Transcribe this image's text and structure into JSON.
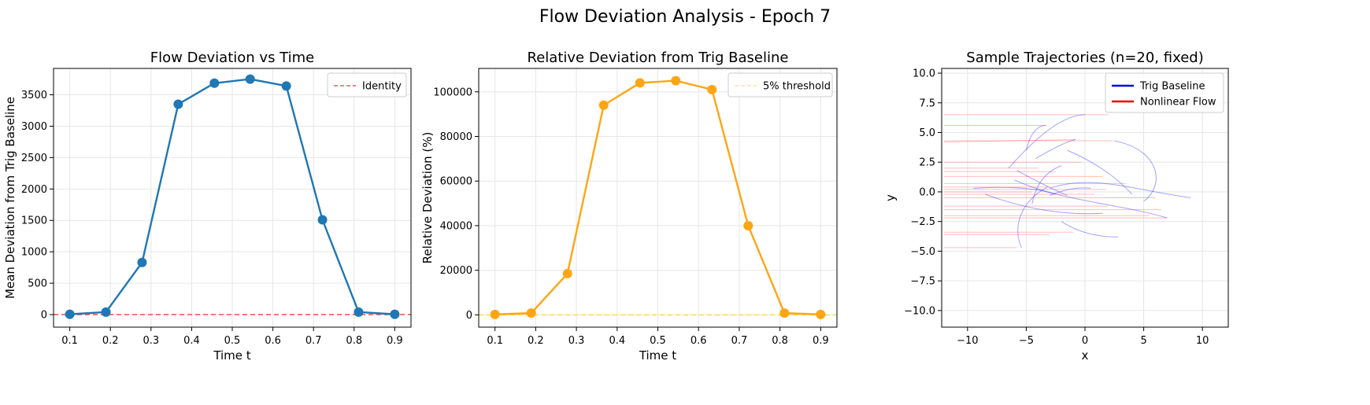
{
  "figure": {
    "title": "Flow Deviation Analysis - Epoch 7"
  },
  "chart_data": [
    {
      "type": "line",
      "title": "Flow Deviation vs Time",
      "xlabel": "Time t",
      "ylabel": "Mean Deviation from Trig Baseline",
      "xlim": [
        0.06,
        0.94
      ],
      "ylim": [
        -200,
        3920
      ],
      "xticks": [
        0.1,
        0.2,
        0.3,
        0.4,
        0.5,
        0.6,
        0.7,
        0.8,
        0.9
      ],
      "yticks": [
        0,
        500,
        1000,
        1500,
        2000,
        2500,
        3000,
        3500
      ],
      "grid": true,
      "legend_position": "top-right",
      "series": [
        {
          "x": [
            0.1,
            0.189,
            0.278,
            0.367,
            0.456,
            0.544,
            0.633,
            0.722,
            0.811,
            0.9
          ],
          "y": [
            5,
            40,
            830,
            3350,
            3685,
            3750,
            3640,
            1510,
            40,
            5
          ],
          "color": "#1f77b4",
          "marker": "circle"
        }
      ],
      "hlines": [
        {
          "y": 0,
          "name": "Identity",
          "color": "#f05a5a",
          "style": "dashed"
        }
      ],
      "legend": [
        {
          "label": "Identity",
          "color": "#f05a5a",
          "style": "dashed"
        }
      ]
    },
    {
      "type": "line",
      "title": "Relative Deviation from Trig Baseline",
      "xlabel": "Time t",
      "ylabel": "Relative Deviation (%)",
      "xlim": [
        0.06,
        0.94
      ],
      "ylim": [
        -5500,
        110500
      ],
      "xticks": [
        0.1,
        0.2,
        0.3,
        0.4,
        0.5,
        0.6,
        0.7,
        0.8,
        0.9
      ],
      "yticks": [
        0,
        20000,
        40000,
        60000,
        80000,
        100000
      ],
      "grid": true,
      "legend_position": "top-right",
      "series": [
        {
          "x": [
            0.1,
            0.189,
            0.278,
            0.367,
            0.456,
            0.544,
            0.633,
            0.722,
            0.811,
            0.9
          ],
          "y": [
            200,
            800,
            18500,
            94000,
            104000,
            105000,
            101000,
            40000,
            800,
            200
          ],
          "color": "#ffa514",
          "marker": "circle"
        }
      ],
      "hlines": [
        {
          "y": 0,
          "name": "5% threshold",
          "color": "#ffdd55",
          "style": "dashed"
        }
      ],
      "legend": [
        {
          "label": "5% threshold",
          "color": "#ffee77",
          "style": "dashed"
        }
      ]
    },
    {
      "type": "line",
      "title": "Sample Trajectories (n=20, fixed)",
      "xlabel": "x",
      "ylabel": "y",
      "xlim": [
        -12.2,
        12.2
      ],
      "ylim": [
        -11.4,
        10.4
      ],
      "xticks": [
        -10,
        -5,
        0,
        5,
        10
      ],
      "yticks": [
        10.0,
        7.5,
        5.0,
        2.5,
        0.0,
        -2.5,
        -5.0,
        -7.5,
        -10.0
      ],
      "ytick_labels": [
        "10.0",
        "7.5",
        "5.0",
        "2.5",
        "0.0",
        "−2.5",
        "−5.0",
        "−7.5",
        "−10.0"
      ],
      "xtick_labels": [
        "−10",
        "−5",
        "0",
        "5",
        "10"
      ],
      "grid": true,
      "legend_position": "top-right",
      "legend": [
        {
          "label": "Trig Baseline",
          "color": "#0000ee",
          "style": "solid"
        },
        {
          "label": "Nonlinear Flow",
          "color": "#ee0000",
          "style": "solid"
        }
      ],
      "nonlinear_flow": {
        "color": "#ff4444",
        "segments": [
          [
            -12.0,
            6.5,
            2.0,
            6.5
          ],
          [
            -12.0,
            5.6,
            -3.3,
            5.6
          ],
          [
            -12.0,
            4.3,
            2.4,
            4.3
          ],
          [
            -12.0,
            4.2,
            -0.8,
            4.4
          ],
          [
            -12.0,
            2.5,
            -0.3,
            2.5
          ],
          [
            -12.0,
            2.0,
            -4.0,
            2.0
          ],
          [
            -12.0,
            1.7,
            -2.5,
            1.7
          ],
          [
            -12.0,
            1.3,
            1.5,
            1.3
          ],
          [
            -12.0,
            0.7,
            3.5,
            0.7
          ],
          [
            -12.0,
            0.4,
            -3.0,
            0.4
          ],
          [
            -12.0,
            0.2,
            1.8,
            0.2
          ],
          [
            -12.0,
            0.0,
            -4.5,
            0.0
          ],
          [
            -12.0,
            -0.2,
            0.8,
            -0.2
          ],
          [
            -12.0,
            -0.5,
            6.0,
            -0.5
          ],
          [
            -12.0,
            -1.2,
            2.0,
            -1.2
          ],
          [
            -12.0,
            -1.5,
            6.5,
            -1.5
          ],
          [
            -12.0,
            -2.0,
            5.5,
            -2.0
          ],
          [
            -12.0,
            -2.2,
            7.0,
            -2.2
          ],
          [
            -12.0,
            -3.4,
            -1.0,
            -3.4
          ],
          [
            -12.0,
            -3.6,
            -3.0,
            -3.6
          ],
          [
            -12.0,
            -4.7,
            -5.8,
            -4.7
          ]
        ]
      },
      "trig_baseline": {
        "color": "#3333ff",
        "curves": [
          [
            [
              -5.4,
              -4.7
            ],
            [
              -6.2,
              -3.0
            ],
            [
              -5.5,
              -0.8
            ],
            [
              -3.2,
              0.4
            ]
          ],
          [
            [
              -5.0,
              3.5
            ],
            [
              -4.5,
              5.6
            ],
            [
              -3.3,
              5.6
            ]
          ],
          [
            [
              -4.2,
              2.8
            ],
            [
              -1.8,
              4.2
            ],
            [
              -0.8,
              4.4
            ]
          ],
          [
            [
              -5.8,
              1.8
            ],
            [
              -3.0,
              0.3
            ],
            [
              -1.5,
              -0.3
            ]
          ],
          [
            [
              2.5,
              4.3
            ],
            [
              6.5,
              3.5
            ],
            [
              6.8,
              0.5
            ],
            [
              5.0,
              -0.8
            ]
          ],
          [
            [
              -3.0,
              0.3
            ],
            [
              0.5,
              1.5
            ],
            [
              4.0,
              0.2
            ],
            [
              9.0,
              -0.5
            ]
          ],
          [
            [
              -8.5,
              -0.2
            ],
            [
              -5.0,
              -1.5
            ],
            [
              -1.5,
              -2.0
            ],
            [
              1.5,
              -1.8
            ]
          ],
          [
            [
              -2.0,
              -2.5
            ],
            [
              0.0,
              -3.8
            ],
            [
              2.8,
              -3.8
            ]
          ],
          [
            [
              -4.5,
              -1.0
            ],
            [
              -4.0,
              1.5
            ],
            [
              -2.0,
              2.2
            ]
          ],
          [
            [
              -1.5,
              3.5
            ],
            [
              2.0,
              2.0
            ],
            [
              4.0,
              -0.2
            ]
          ],
          [
            [
              -6.0,
              1.0
            ],
            [
              -2.0,
              -0.8
            ],
            [
              3.0,
              -1.0
            ],
            [
              7.0,
              -2.2
            ]
          ],
          [
            [
              -9.5,
              0.3
            ],
            [
              -5.0,
              0.6
            ],
            [
              -2.5,
              -0.2
            ]
          ],
          [
            [
              -6.5,
              2.0
            ],
            [
              -2.5,
              6.5
            ],
            [
              0.0,
              6.5
            ]
          ],
          [
            [
              -3.0,
              -0.3
            ],
            [
              -1.0,
              0.5
            ],
            [
              0.5,
              0.3
            ]
          ]
        ]
      }
    }
  ]
}
